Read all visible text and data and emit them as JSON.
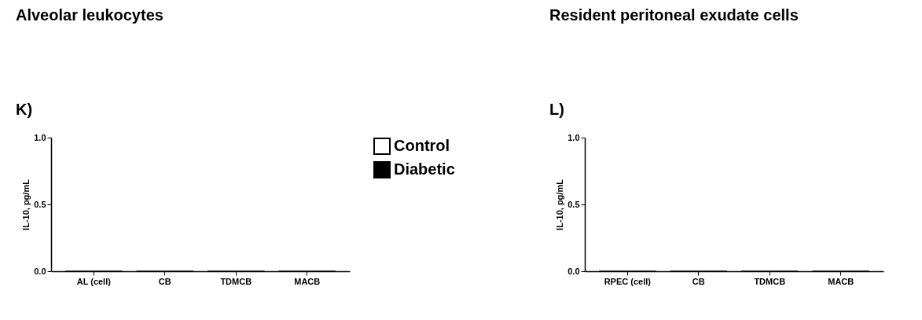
{
  "chart_data": [
    {
      "type": "bar",
      "title": "Alveolar leukocytes",
      "annotations": [
        "K)"
      ],
      "ylabel": "IL-10, pg/mL",
      "categories": [
        "AL (cell)",
        "CB",
        "TDMCB",
        "MACB"
      ],
      "series": [
        {
          "name": "Control",
          "color": "#ffffff",
          "values": [
            0,
            0,
            0,
            0
          ]
        },
        {
          "name": "Diabetic",
          "color": "#000000",
          "values": [
            0,
            0,
            0,
            0
          ]
        }
      ],
      "ylim": [
        0,
        1.0
      ],
      "yticks": [
        {
          "value": 0,
          "label": "0.0"
        },
        {
          "value": 0.5,
          "label": "0.5"
        },
        {
          "value": 1.0,
          "label": "1.0"
        }
      ],
      "grid": false,
      "legend": "right"
    },
    {
      "type": "bar",
      "title": "Resident peritoneal exudate cells",
      "annotations": [
        "L)"
      ],
      "ylabel": "IL-10, pg/mL",
      "categories": [
        "RPEC (cell)",
        "CB",
        "TDMCB",
        "MACB"
      ],
      "series": [
        {
          "color": "#ffffff",
          "values": [
            0,
            0,
            0,
            0
          ]
        },
        {
          "color": "#000000",
          "values": [
            0,
            0,
            0,
            0
          ]
        }
      ],
      "ylim": [
        0,
        1.0
      ],
      "yticks": [
        {
          "value": 0,
          "label": "0.0"
        },
        {
          "value": 0.5,
          "label": "0.5"
        },
        {
          "value": 1.0,
          "label": "1.0"
        }
      ],
      "grid": false,
      "legend": false
    }
  ]
}
